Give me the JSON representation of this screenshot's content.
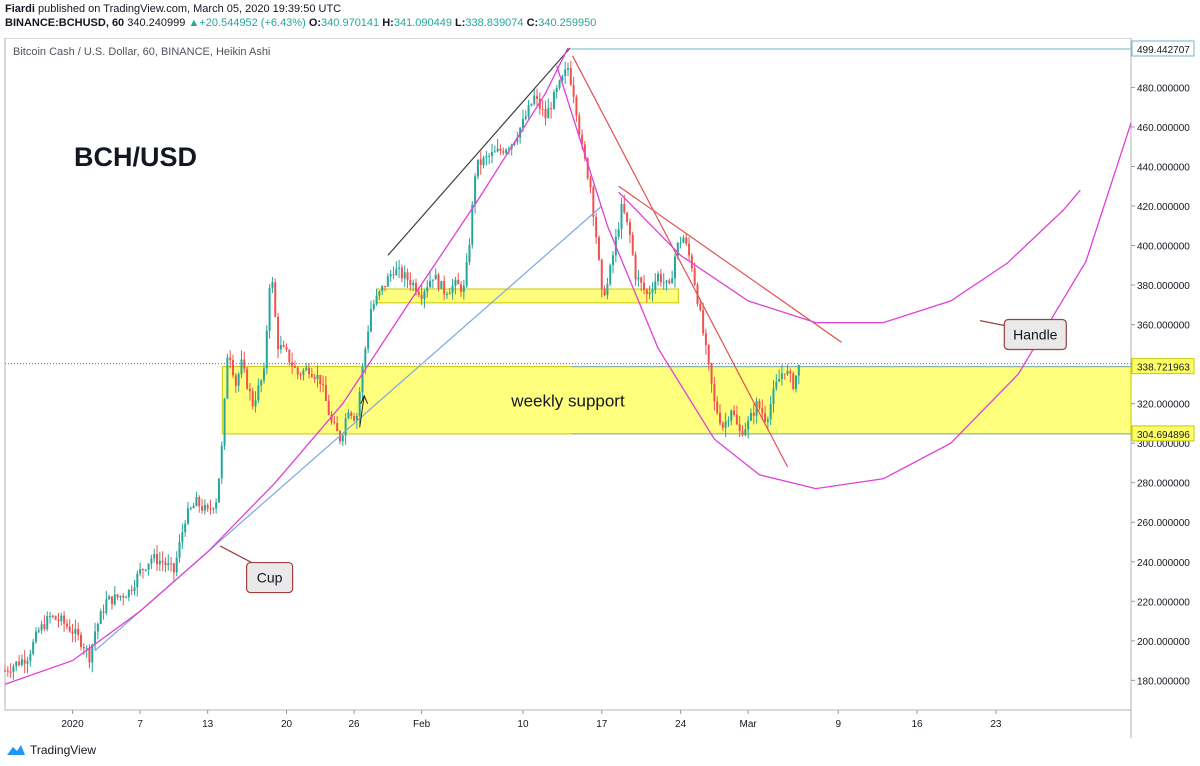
{
  "header": {
    "author": "Fiardi",
    "published": "published on TradingView.com, March 05, 2020 19:39:50 UTC",
    "symbol": "BINANCE:BCHUSD, 60",
    "price": "340.240999",
    "change": "+20.544952 (+6.43%)",
    "o_label": "O:",
    "o_value": "340.970141",
    "h_label": "H:",
    "h_value": "341.090449",
    "l_label": "L:",
    "l_value": "338.839074",
    "c_label": "C:",
    "c_value": "340.259950"
  },
  "footer": {
    "brand": "TradingView"
  },
  "colors": {
    "up": "#26a69a",
    "down": "#ef5350",
    "pink": "#e040d8",
    "red_line": "#e05050",
    "blue_line": "#7ea7e0",
    "yellow_zone": "#ffff66",
    "price_line": "#d04040"
  },
  "chart_data": {
    "type": "candlestick",
    "title": "Bitcoin Cash / U.S. Dollar, 60, BINANCE, Heikin Ashi",
    "big_label": "BCH/USD",
    "ylim": [
      165,
      505
    ],
    "y_ticks": [
      180,
      200,
      220,
      240,
      260,
      280,
      300,
      320,
      340,
      360,
      380,
      400,
      420,
      440,
      460,
      480
    ],
    "x_ticks": [
      {
        "label": "2020",
        "day": 0
      },
      {
        "label": "7",
        "day": 6
      },
      {
        "label": "13",
        "day": 12
      },
      {
        "label": "20",
        "day": 19
      },
      {
        "label": "26",
        "day": 25
      },
      {
        "label": "Feb",
        "day": 31
      },
      {
        "label": "10",
        "day": 40
      },
      {
        "label": "17",
        "day": 47
      },
      {
        "label": "24",
        "day": 54
      },
      {
        "label": "Mar",
        "day": 60
      },
      {
        "label": "9",
        "day": 68
      },
      {
        "label": "16",
        "day": 75
      },
      {
        "label": "23",
        "day": 82
      }
    ],
    "xlim_days": [
      -6,
      94
    ],
    "price_path": [
      [
        -6,
        185
      ],
      [
        -4,
        192
      ],
      [
        -3,
        205
      ],
      [
        -2,
        212
      ],
      [
        -1,
        210
      ],
      [
        0,
        205
      ],
      [
        1,
        198
      ],
      [
        1.5,
        192
      ],
      [
        2,
        205
      ],
      [
        3,
        220
      ],
      [
        4,
        222
      ],
      [
        5,
        225
      ],
      [
        6,
        235
      ],
      [
        7,
        242
      ],
      [
        8,
        240
      ],
      [
        9,
        235
      ],
      [
        10,
        262
      ],
      [
        11,
        270
      ],
      [
        12,
        265
      ],
      [
        12.8,
        272
      ],
      [
        13.3,
        300
      ],
      [
        13.8,
        350
      ],
      [
        14.5,
        330
      ],
      [
        15,
        340
      ],
      [
        16,
        320
      ],
      [
        17,
        335
      ],
      [
        17.6,
        390
      ],
      [
        18.2,
        350
      ],
      [
        19,
        345
      ],
      [
        20,
        335
      ],
      [
        21,
        338
      ],
      [
        22,
        332
      ],
      [
        23,
        310
      ],
      [
        23.8,
        302
      ],
      [
        24.5,
        318
      ],
      [
        25.2,
        312
      ],
      [
        25.8,
        340
      ],
      [
        26.5,
        368
      ],
      [
        27.5,
        378
      ],
      [
        28.5,
        388
      ],
      [
        30,
        382
      ],
      [
        31,
        376
      ],
      [
        32,
        385
      ],
      [
        33,
        377
      ],
      [
        34,
        380
      ],
      [
        34.8,
        378
      ],
      [
        35.3,
        405
      ],
      [
        35.8,
        440
      ],
      [
        37,
        445
      ],
      [
        38,
        448
      ],
      [
        39,
        452
      ],
      [
        40,
        462
      ],
      [
        41,
        475
      ],
      [
        42,
        465
      ],
      [
        43,
        478
      ],
      [
        44,
        490
      ],
      [
        44.6,
        475
      ],
      [
        45.2,
        450
      ],
      [
        46,
        430
      ],
      [
        46.6,
        400
      ],
      [
        47,
        375
      ],
      [
        47.5,
        380
      ],
      [
        48,
        395
      ],
      [
        48.8,
        420
      ],
      [
        49.5,
        405
      ],
      [
        50,
        385
      ],
      [
        51,
        375
      ],
      [
        52,
        385
      ],
      [
        53,
        378
      ],
      [
        53.6,
        398
      ],
      [
        54.2,
        405
      ],
      [
        55,
        390
      ],
      [
        55.6,
        370
      ],
      [
        56.3,
        345
      ],
      [
        57,
        320
      ],
      [
        57.8,
        308
      ],
      [
        58.5,
        318
      ],
      [
        59.2,
        305
      ],
      [
        60,
        310
      ],
      [
        60.8,
        320
      ],
      [
        61.6,
        312
      ],
      [
        62.4,
        328
      ],
      [
        63.2,
        338
      ],
      [
        64,
        330
      ],
      [
        64.6,
        340
      ]
    ],
    "levels": [
      {
        "label": "499.442707",
        "value": 499.442707,
        "style": "line"
      },
      {
        "label": "338.721963",
        "value": 338.721963,
        "style": "yellow"
      },
      {
        "label": "304.694896",
        "value": 304.694896,
        "style": "yellow"
      }
    ],
    "current_price": 340.24,
    "zones": [
      {
        "name": "weekly support",
        "x0_day": 13.3,
        "x1_day": 94,
        "y_low": 304.69,
        "y_high": 338.72
      },
      {
        "name": "",
        "x0_day": 27,
        "x1_day": 53.8,
        "y_low": 371,
        "y_high": 378
      }
    ],
    "annotations": [
      {
        "text": "weekly support",
        "day": 44,
        "value": 321.5
      },
      {
        "text": "Cup",
        "day": 17.5,
        "value": 232
      },
      {
        "text": "Handle",
        "day": 85.5,
        "value": 355
      }
    ],
    "trendlines": [
      {
        "kind": "black",
        "points": [
          [
            28,
            395
          ],
          [
            44.2,
            500
          ]
        ]
      },
      {
        "kind": "red",
        "points": [
          [
            44.4,
            496
          ],
          [
            63.5,
            288
          ]
        ]
      },
      {
        "kind": "red",
        "points": [
          [
            48.5,
            430
          ],
          [
            68.3,
            351
          ]
        ]
      },
      {
        "kind": "blue",
        "points": [
          [
            2,
            195
          ],
          [
            47,
            420
          ]
        ]
      }
    ],
    "arcs": [
      {
        "kind": "pink",
        "points": [
          [
            -6,
            178
          ],
          [
            0,
            190
          ],
          [
            6,
            215
          ],
          [
            12,
            245
          ],
          [
            18,
            280
          ],
          [
            24,
            320
          ],
          [
            30,
            372
          ],
          [
            36,
            423
          ],
          [
            42,
            477
          ],
          [
            44,
            500
          ]
        ]
      },
      {
        "kind": "pink",
        "points": [
          [
            43,
            491
          ],
          [
            47.5,
            410
          ],
          [
            52,
            348
          ],
          [
            57,
            302
          ],
          [
            61,
            284
          ],
          [
            66,
            277
          ],
          [
            72,
            282
          ],
          [
            78,
            300
          ],
          [
            84,
            335
          ],
          [
            90,
            392
          ],
          [
            94,
            462
          ]
        ]
      },
      {
        "kind": "pink",
        "points": [
          [
            48.5,
            427
          ],
          [
            54,
            395
          ],
          [
            60,
            372
          ],
          [
            66,
            361
          ],
          [
            72,
            361
          ],
          [
            78,
            372
          ],
          [
            83,
            391
          ],
          [
            88,
            418
          ],
          [
            89.5,
            428
          ]
        ]
      }
    ]
  }
}
